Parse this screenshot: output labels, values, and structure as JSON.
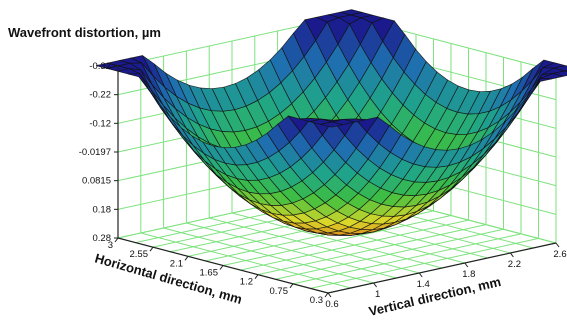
{
  "chart_data": {
    "type": "surface",
    "title": "Wavefront distortion, µm",
    "xlabel": "Horizontal direction, mm",
    "ylabel": "Vertical direction, mm",
    "zlabel": "Wavefront distortion, µm",
    "x_ticks": [
      "3",
      "2.55",
      "2.1",
      "1.65",
      "1.2",
      "0.75",
      "0.3"
    ],
    "y_ticks": [
      "0.6",
      "1",
      "1.4",
      "1.8",
      "2.2",
      "2.6"
    ],
    "z_ticks": [
      "-0.32",
      "-0.22",
      "-0.12",
      "-0.0197",
      "0.0815",
      "0.18",
      "0.28"
    ],
    "xlim": [
      0.3,
      3
    ],
    "ylim": [
      0.6,
      2.6
    ],
    "zlim": [
      -0.32,
      0.28
    ],
    "z_inverted": true,
    "grid": true,
    "grid_color": "#7ee27e",
    "colormap": [
      "#1a1a8c",
      "#1f6fb0",
      "#1fa58a",
      "#3fbf3f",
      "#d8d82a",
      "#e07a1a"
    ],
    "surface_summary": {
      "center_value": 0.28,
      "edge_value": -0.32,
      "shape": "bowl"
    }
  }
}
